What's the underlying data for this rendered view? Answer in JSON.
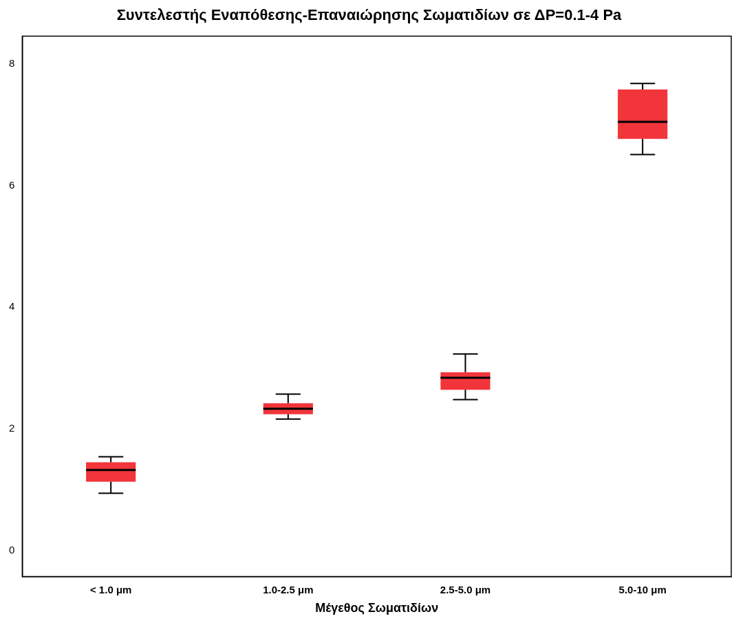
{
  "chart_data": {
    "type": "box",
    "title": "Συντελεστής Εναπόθεσης-Επαναιώρησης Σωματιδίων σε ΔP=0.1-4 Pa",
    "xlabel": "Μέγεθος Σωματιδίων",
    "categories": [
      "< 1.0 μm",
      "1.0-2.5 μm",
      "2.5-5.0 μm",
      "5.0-10 μm"
    ],
    "color": "#f2353b",
    "boxes": [
      {
        "low": 0.94,
        "q1": 1.13,
        "median": 1.32,
        "q3": 1.45,
        "high": 1.54
      },
      {
        "low": 2.16,
        "q1": 2.24,
        "median": 2.33,
        "q3": 2.42,
        "high": 2.57
      },
      {
        "low": 2.48,
        "q1": 2.64,
        "median": 2.84,
        "q3": 2.93,
        "high": 3.23
      },
      {
        "low": 6.51,
        "q1": 6.77,
        "median": 7.05,
        "q3": 7.58,
        "high": 7.68
      }
    ],
    "ylim": [
      -0.43,
      8.46
    ],
    "yticks": [
      0,
      2,
      4,
      6,
      8
    ],
    "grid": false,
    "legend": false
  }
}
